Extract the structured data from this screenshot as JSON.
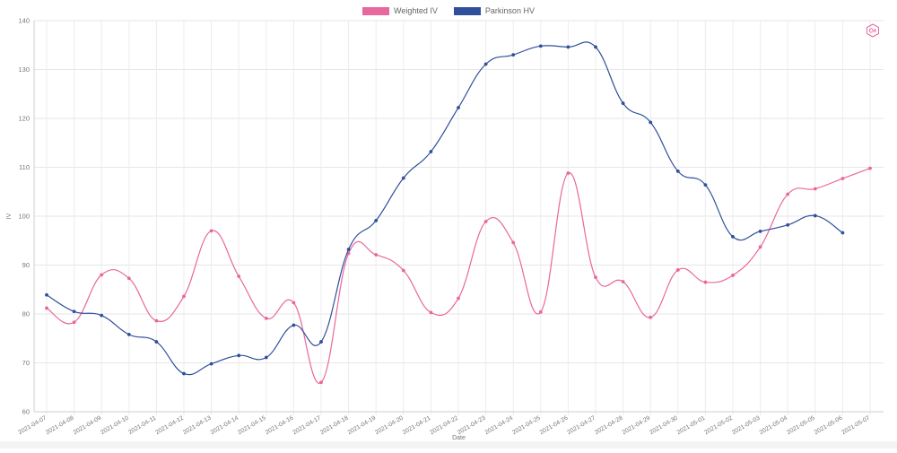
{
  "legend": {
    "items": [
      {
        "label": "Weighted IV",
        "color": "#e8679c"
      },
      {
        "label": "Parkinson HV",
        "color": "#2f4f9a"
      }
    ]
  },
  "brand_icon": "hexagon-logo-icon",
  "chart_data": {
    "type": "line",
    "xlabel": "Date",
    "ylabel": "IV",
    "ylim": [
      60,
      140
    ],
    "yticks": [
      60,
      70,
      80,
      90,
      100,
      110,
      120,
      130,
      140
    ],
    "grid": true,
    "legend_position": "top-center",
    "categories": [
      "2021-04-07",
      "2021-04-08",
      "2021-04-09",
      "2021-04-10",
      "2021-04-11",
      "2021-04-12",
      "2021-04-13",
      "2021-04-14",
      "2021-04-15",
      "2021-04-16",
      "2021-04-17",
      "2021-04-18",
      "2021-04-19",
      "2021-04-20",
      "2021-04-21",
      "2021-04-22",
      "2021-04-23",
      "2021-04-24",
      "2021-04-25",
      "2021-04-26",
      "2021-04-27",
      "2021-04-28",
      "2021-04-29",
      "2021-04-30",
      "2021-05-01",
      "2021-05-02",
      "2021-05-03",
      "2021-05-04",
      "2021-05-05",
      "2021-05-06",
      "2021-05-07"
    ],
    "series": [
      {
        "name": "Weighted IV",
        "color": "#e8679c",
        "values": [
          81.2,
          78.3,
          88.0,
          87.3,
          78.6,
          83.6,
          97.0,
          87.7,
          79.1,
          82.3,
          66.0,
          92.4,
          92.1,
          88.9,
          80.3,
          83.2,
          98.9,
          94.6,
          80.4,
          108.8,
          87.5,
          86.6,
          79.3,
          89.0,
          86.5,
          87.9,
          93.7,
          104.5,
          105.6,
          107.7,
          109.8
        ]
      },
      {
        "name": "Parkinson HV",
        "color": "#2f4f9a",
        "values": [
          83.9,
          80.5,
          79.7,
          75.8,
          74.3,
          67.8,
          69.8,
          71.5,
          71.1,
          77.7,
          74.3,
          93.2,
          99.1,
          107.8,
          113.2,
          122.2,
          131.1,
          133.0,
          134.8,
          134.6,
          134.6,
          123.1,
          119.2,
          109.2,
          106.4,
          95.8,
          96.9,
          98.2,
          100.1,
          96.6,
          null
        ]
      }
    ]
  }
}
